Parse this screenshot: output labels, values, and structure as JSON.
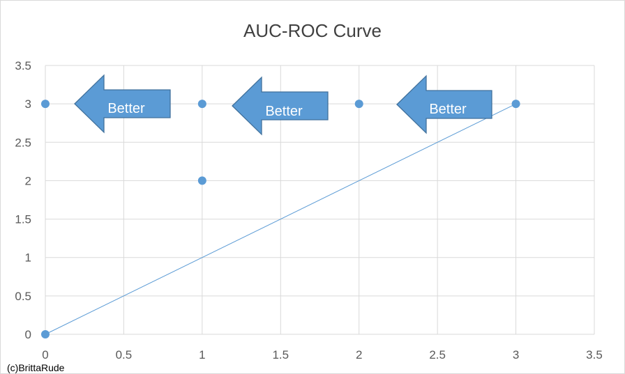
{
  "chart_data": {
    "type": "scatter",
    "title": "AUC-ROC Curve",
    "xlim": [
      0,
      3.5
    ],
    "ylim": [
      0,
      3.5
    ],
    "x_ticks": [
      "0",
      "0.5",
      "1",
      "1.5",
      "2",
      "2.5",
      "3",
      "3.5"
    ],
    "y_ticks": [
      "0",
      "0.5",
      "1",
      "1.5",
      "2",
      "2.5",
      "3",
      "3.5"
    ],
    "grid": true,
    "series": [
      {
        "type": "scatter",
        "color": "#5b9bd5",
        "points": [
          [
            0,
            0
          ],
          [
            0,
            3
          ],
          [
            1,
            3
          ],
          [
            1,
            2
          ],
          [
            2,
            3
          ],
          [
            3,
            3
          ]
        ]
      },
      {
        "type": "line",
        "color": "#5b9bd5",
        "points": [
          [
            0,
            0
          ],
          [
            3,
            3
          ]
        ]
      }
    ],
    "annotations": [
      {
        "shape": "left-arrow",
        "text": "Better",
        "color": "#5b9bd5"
      },
      {
        "shape": "left-arrow",
        "text": "Better",
        "color": "#5b9bd5"
      },
      {
        "shape": "left-arrow",
        "text": "Better",
        "color": "#5b9bd5"
      }
    ]
  },
  "footer": {
    "copyright": "(c)BrittaRude"
  }
}
